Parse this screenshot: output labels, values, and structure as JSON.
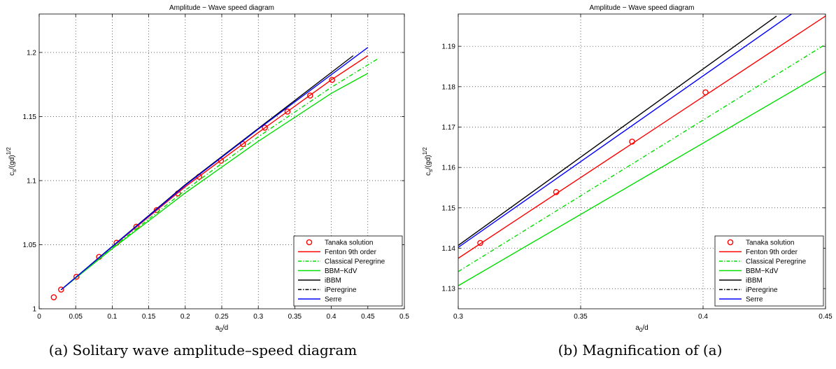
{
  "captions": {
    "a": "(a) Solitary wave amplitude–speed diagram",
    "b": "(b) Magnification of (a)"
  },
  "chart_data": [
    {
      "type": "line",
      "title": "Amplitude − Wave speed diagram",
      "xlabel_base": "a",
      "xlabel_sub": "0",
      "xlabel_rest": "/d",
      "ylabel_base": "c",
      "ylabel_sub": "s",
      "ylabel_rest": "/(gd)",
      "ylabel_sup": "1/2",
      "xlim": [
        0,
        0.5
      ],
      "ylim": [
        1.0,
        1.23
      ],
      "xticks": [
        0,
        0.05,
        0.1,
        0.15,
        0.2,
        0.25,
        0.3,
        0.35,
        0.4,
        0.45,
        0.5
      ],
      "xtick_labels": [
        "0",
        "0.05",
        "0.1",
        "0.15",
        "0.2",
        "0.25",
        "0.3",
        "0.35",
        "0.4",
        "0.45",
        "0.5"
      ],
      "yticks": [
        1.0,
        1.05,
        1.1,
        1.15,
        1.2
      ],
      "ytick_labels": [
        "1",
        "1.05",
        "1.1",
        "1.15",
        "1.2"
      ],
      "grid": true,
      "legend_position": "bottom-right",
      "series": [
        {
          "name": "Tanaka solution",
          "color": "#ff0000",
          "style": "circles",
          "x": [
            0.02,
            0.03,
            0.051,
            0.082,
            0.106,
            0.133,
            0.161,
            0.19,
            0.219,
            0.249,
            0.279,
            0.309,
            0.34,
            0.371,
            0.401
          ],
          "y": [
            1.009,
            1.015,
            1.025,
            1.0405,
            1.0515,
            1.064,
            1.077,
            1.09,
            1.103,
            1.1155,
            1.1285,
            1.1413,
            1.1539,
            1.1664,
            1.1786
          ]
        },
        {
          "name": "Fenton 9th order",
          "color": "#ff0000",
          "style": "solid",
          "x": [
            0.03,
            0.1,
            0.2,
            0.3,
            0.4,
            0.45
          ],
          "y": [
            1.0148,
            1.0483,
            1.0952,
            1.1375,
            1.1786,
            1.1975
          ]
        },
        {
          "name": "Classical Peregrine",
          "color": "#00dd00",
          "style": "dashdot",
          "x": [
            0.03,
            0.1,
            0.2,
            0.3,
            0.4,
            0.465
          ],
          "y": [
            1.0148,
            1.0475,
            1.0925,
            1.1342,
            1.1728,
            1.1955
          ]
        },
        {
          "name": "BBM−KdV",
          "color": "#00dd00",
          "style": "solid",
          "x": [
            0.03,
            0.1,
            0.2,
            0.3,
            0.4,
            0.45
          ],
          "y": [
            1.0148,
            1.0469,
            1.0904,
            1.1307,
            1.1681,
            1.1837
          ]
        },
        {
          "name": "iBBM",
          "color": "#000000",
          "style": "solid",
          "x": [
            0.03,
            0.1,
            0.2,
            0.3,
            0.43
          ],
          "y": [
            1.0148,
            1.0487,
            1.0968,
            1.1407,
            1.1975
          ]
        },
        {
          "name": "iPeregrine",
          "color": "#000000",
          "style": "dashdot",
          "x": [],
          "y": []
        },
        {
          "name": "Serre",
          "color": "#0000ff",
          "style": "solid",
          "x": [
            0.03,
            0.1,
            0.2,
            0.3,
            0.45
          ],
          "y": [
            1.0148,
            1.0485,
            1.0963,
            1.1402,
            1.2039
          ]
        }
      ]
    },
    {
      "type": "line",
      "title": "Amplitude − Wave speed diagram",
      "xlabel_base": "a",
      "xlabel_sub": "0",
      "xlabel_rest": "/d",
      "ylabel_base": "c",
      "ylabel_sub": "s",
      "ylabel_rest": "/(gd)",
      "ylabel_sup": "1/2",
      "xlim": [
        0.3,
        0.45
      ],
      "ylim": [
        1.125,
        1.198
      ],
      "xticks": [
        0.3,
        0.35,
        0.4,
        0.45
      ],
      "xtick_labels": [
        "0.3",
        "0.35",
        "0.4",
        "0.45"
      ],
      "yticks": [
        1.13,
        1.14,
        1.15,
        1.16,
        1.17,
        1.18,
        1.19
      ],
      "ytick_labels": [
        "1.13",
        "1.14",
        "1.15",
        "1.16",
        "1.17",
        "1.18",
        "1.19"
      ],
      "grid": true,
      "legend_position": "bottom-right",
      "series": [
        {
          "name": "Tanaka solution",
          "color": "#ff0000",
          "style": "circles",
          "x": [
            0.309,
            0.34,
            0.371,
            0.401
          ],
          "y": [
            1.1413,
            1.1539,
            1.1664,
            1.1786
          ]
        },
        {
          "name": "Fenton 9th order",
          "color": "#ff0000",
          "style": "solid",
          "x": [
            0.3,
            0.45
          ],
          "y": [
            1.1375,
            1.1975
          ]
        },
        {
          "name": "Classical Peregrine",
          "color": "#00dd00",
          "style": "dashdot",
          "x": [
            0.3,
            0.45
          ],
          "y": [
            1.1342,
            1.1905
          ]
        },
        {
          "name": "BBM−KdV",
          "color": "#00dd00",
          "style": "solid",
          "x": [
            0.3,
            0.45
          ],
          "y": [
            1.1307,
            1.1837
          ]
        },
        {
          "name": "iBBM",
          "color": "#000000",
          "style": "solid",
          "x": [
            0.3,
            0.43
          ],
          "y": [
            1.1407,
            1.1975
          ]
        },
        {
          "name": "iPeregrine",
          "color": "#000000",
          "style": "dashdot",
          "x": [],
          "y": []
        },
        {
          "name": "Serre",
          "color": "#0000ff",
          "style": "solid",
          "x": [
            0.3,
            0.45
          ],
          "y": [
            1.1402,
            1.2039
          ]
        }
      ]
    }
  ]
}
